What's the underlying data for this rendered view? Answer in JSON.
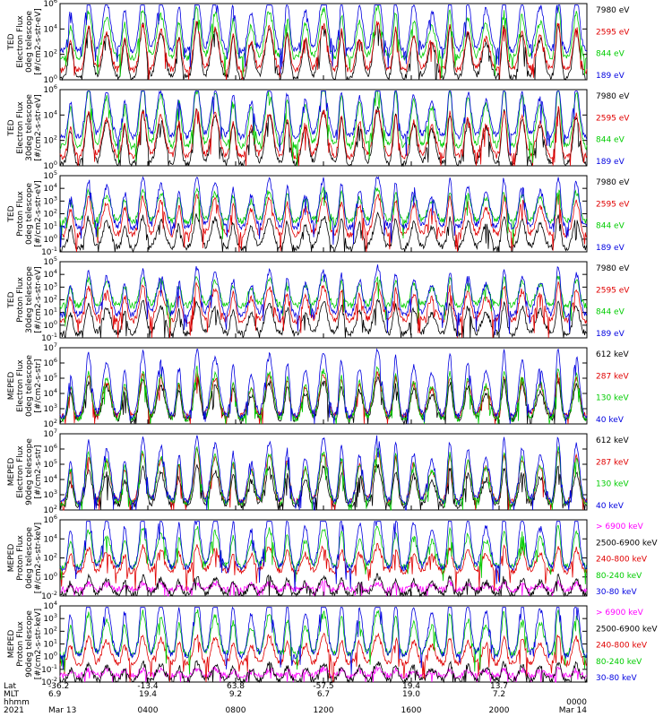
{
  "chart_data": [
    {
      "type": "line",
      "ylabel": [
        "TED",
        "Electron Flux",
        "0deg telescope",
        "[#/cm2-s-str-eV]"
      ],
      "yticks": [
        "10^0",
        "10^2",
        "10^4",
        "10^6"
      ],
      "series": [
        {
          "name": "7980 eV",
          "color": "#000000"
        },
        {
          "name": "2595 eV",
          "color": "#e00000"
        },
        {
          "name": "844 eV",
          "color": "#00cc00"
        },
        {
          "name": "189 eV",
          "color": "#0000e0"
        }
      ]
    },
    {
      "type": "line",
      "ylabel": [
        "TED",
        "Electron Flux",
        "30deg telescope",
        "[#/cm2-s-str-eV]"
      ],
      "yticks": [
        "10^0",
        "10^2",
        "10^4",
        "10^6"
      ],
      "series": [
        {
          "name": "7980 eV",
          "color": "#000000"
        },
        {
          "name": "2595 eV",
          "color": "#e00000"
        },
        {
          "name": "844 eV",
          "color": "#00cc00"
        },
        {
          "name": "189 eV",
          "color": "#0000e0"
        }
      ]
    },
    {
      "type": "line",
      "ylabel": [
        "TED",
        "Proton Flux",
        "0deg telescope",
        "[#/cm2-s-str-eV]"
      ],
      "yticks": [
        "10^-1",
        "10^0",
        "10^1",
        "10^2",
        "10^3",
        "10^4",
        "10^5"
      ],
      "series": [
        {
          "name": "7980 eV",
          "color": "#000000"
        },
        {
          "name": "2595 eV",
          "color": "#e00000"
        },
        {
          "name": "844 eV",
          "color": "#00cc00"
        },
        {
          "name": "189 eV",
          "color": "#0000e0"
        }
      ]
    },
    {
      "type": "line",
      "ylabel": [
        "TED",
        "Proton Flux",
        "30deg telescope",
        "[#/cm2-s-str-eV]"
      ],
      "yticks": [
        "10^-1",
        "10^0",
        "10^1",
        "10^2",
        "10^3",
        "10^4",
        "10^5"
      ],
      "series": [
        {
          "name": "7980 eV",
          "color": "#000000"
        },
        {
          "name": "2595 eV",
          "color": "#e00000"
        },
        {
          "name": "844 eV",
          "color": "#00cc00"
        },
        {
          "name": "189 eV",
          "color": "#0000e0"
        }
      ]
    },
    {
      "type": "line",
      "ylabel": [
        "MEPED",
        "Electron Flux",
        "0deg telescope",
        "[#/cm2-s-str]"
      ],
      "yticks": [
        "10^2",
        "10^3",
        "10^4",
        "10^5",
        "10^6",
        "10^7"
      ],
      "series": [
        {
          "name": "612 keV",
          "color": "#000000"
        },
        {
          "name": "287 keV",
          "color": "#e00000"
        },
        {
          "name": "130 keV",
          "color": "#00cc00"
        },
        {
          "name": "40 keV",
          "color": "#0000e0"
        }
      ]
    },
    {
      "type": "line",
      "ylabel": [
        "MEPED",
        "Electron Flux",
        "90deg telescope",
        "[#/cm2-s-str]"
      ],
      "yticks": [
        "10^2",
        "10^3",
        "10^4",
        "10^5",
        "10^6",
        "10^7"
      ],
      "series": [
        {
          "name": "612 keV",
          "color": "#000000"
        },
        {
          "name": "287 keV",
          "color": "#e00000"
        },
        {
          "name": "130 keV",
          "color": "#00cc00"
        },
        {
          "name": "40 keV",
          "color": "#0000e0"
        }
      ]
    },
    {
      "type": "line",
      "ylabel": [
        "MEPED",
        "Proton Flux",
        "0deg telescope",
        "[#/cm2-s-str-keV]"
      ],
      "yticks": [
        "10^-2",
        "10^0",
        "10^2",
        "10^4",
        "10^6"
      ],
      "series": [
        {
          "name": "> 6900 keV",
          "color": "#ff00ff"
        },
        {
          "name": "2500-6900 keV",
          "color": "#000000"
        },
        {
          "name": "240-800 keV",
          "color": "#e00000"
        },
        {
          "name": "80-240 keV",
          "color": "#00cc00"
        },
        {
          "name": "30-80 keV",
          "color": "#0000e0"
        }
      ]
    },
    {
      "type": "line",
      "ylabel": [
        "MEPED",
        "Proton Flux",
        "90deg telescope",
        "[#/cm2-s-str-keV]"
      ],
      "yticks": [
        "10^-2",
        "10^-1",
        "10^0",
        "10^1",
        "10^2",
        "10^3",
        "10^4"
      ],
      "series": [
        {
          "name": "> 6900 keV",
          "color": "#ff00ff"
        },
        {
          "name": "2500-6900 keV",
          "color": "#000000"
        },
        {
          "name": "240-800 keV",
          "color": "#e00000"
        },
        {
          "name": "80-240 keV",
          "color": "#00cc00"
        },
        {
          "name": "30-80 keV",
          "color": "#0000e0"
        }
      ]
    }
  ],
  "x_axis": {
    "row_labels": [
      "Lat",
      "MLT",
      "hhmm",
      "2021"
    ],
    "ticks": [
      {
        "lat": "-36.2",
        "mlt": "6.9",
        "time": "Mar 13"
      },
      {
        "lat": "-13.4",
        "mlt": "19.4",
        "time": "0400"
      },
      {
        "lat": "63.8",
        "mlt": "9.2",
        "time": "0800"
      },
      {
        "lat": "-57.5",
        "mlt": "6.7",
        "time": "1200"
      },
      {
        "lat": "19.4",
        "mlt": "19.0",
        "time": "1600"
      },
      {
        "lat": "13.7",
        "mlt": "7.2",
        "time": "2000"
      },
      {
        "lat": "",
        "mlt": "0000",
        "time": "Mar 14"
      }
    ]
  }
}
